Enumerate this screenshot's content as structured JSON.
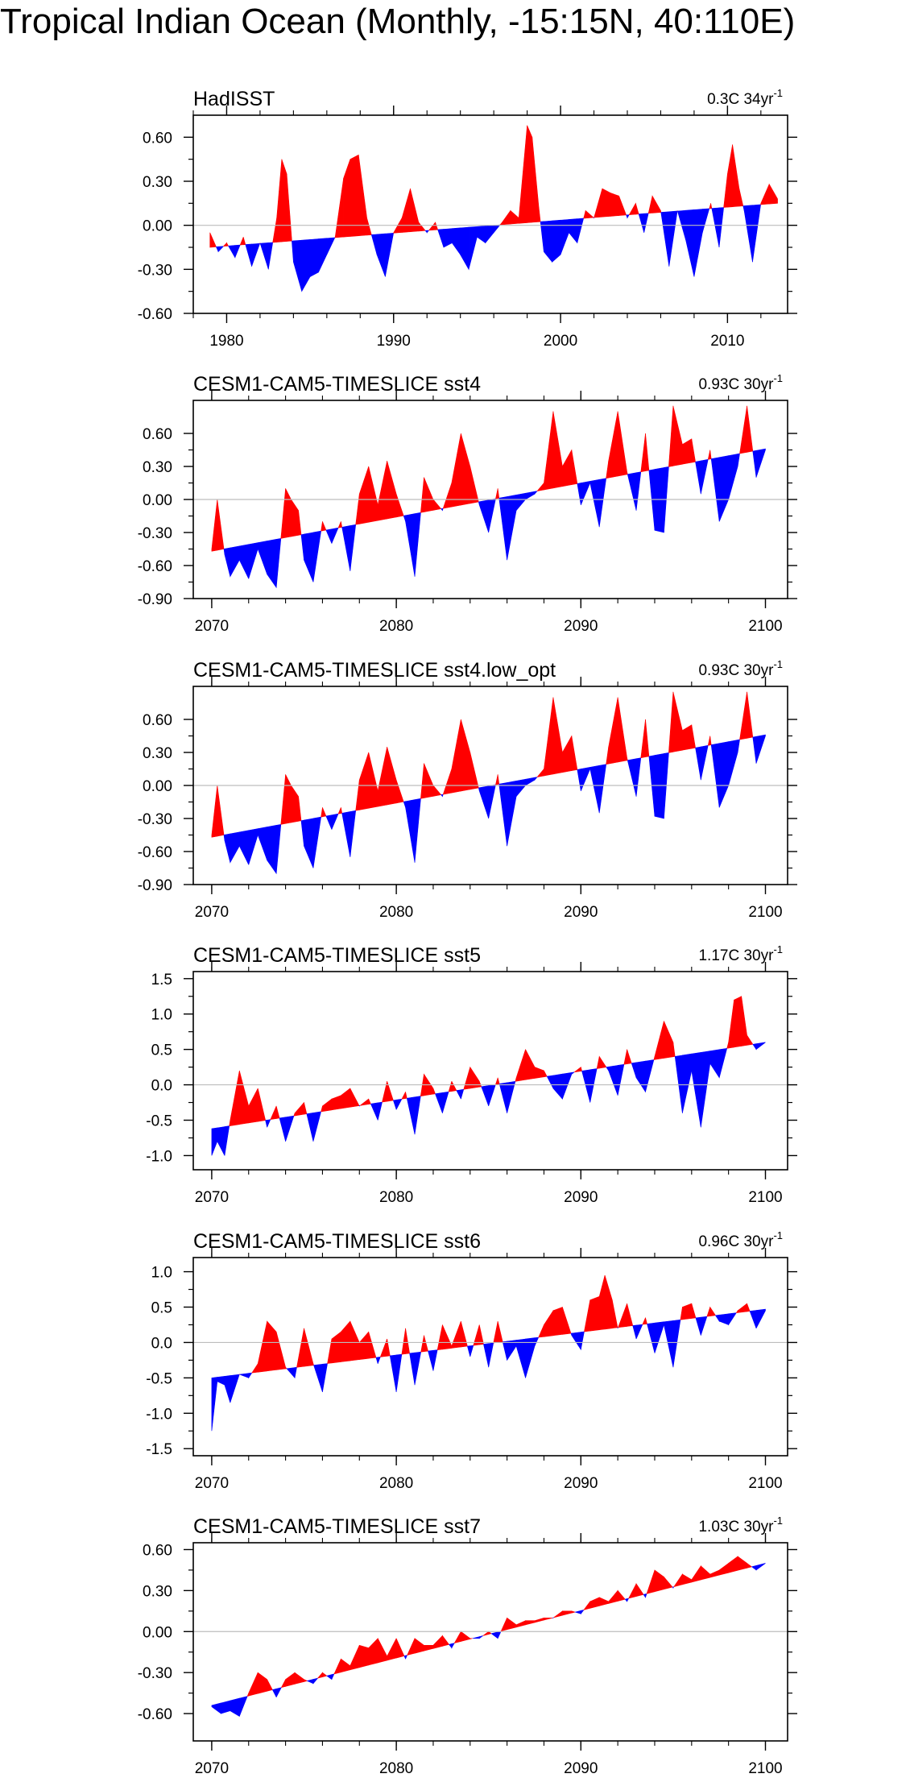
{
  "title": "Tropical Indian Ocean (Monthly, -15:15N, 40:110E)",
  "colors": {
    "positive": "#ff0000",
    "negative": "#0000ff",
    "axis": "#000000",
    "zero_line": "#bdbdbd"
  },
  "chart_data": [
    {
      "type": "area",
      "title": "HadISST",
      "trend_label": "0.3C 34yr",
      "trend_unit_sup": "-1",
      "xlim": [
        1978,
        2013.6
      ],
      "ylim": [
        -0.6,
        0.75
      ],
      "yticks": [
        -0.6,
        -0.3,
        0.0,
        0.3,
        0.6
      ],
      "ytick_labels": [
        "-0.60",
        "-0.30",
        "0.00",
        "0.30",
        "0.60"
      ],
      "xticks": [
        1980,
        1990,
        2000,
        2010
      ],
      "xtick_labels": [
        "1980",
        "1990",
        "2000",
        "2010"
      ],
      "trend": {
        "x": [
          1979,
          2013
        ],
        "y": [
          -0.15,
          0.15
        ]
      },
      "series": {
        "x": [
          1979.0,
          1979.5,
          1980.0,
          1980.5,
          1981.0,
          1981.5,
          1982.0,
          1982.5,
          1983.0,
          1983.3,
          1983.6,
          1984.0,
          1984.5,
          1985.0,
          1985.5,
          1986.0,
          1986.5,
          1987.0,
          1987.4,
          1987.9,
          1988.4,
          1989.0,
          1989.5,
          1990.0,
          1990.5,
          1991.0,
          1991.5,
          1992.0,
          1992.5,
          1993.0,
          1993.5,
          1994.0,
          1994.5,
          1995.0,
          1995.5,
          1996.0,
          1996.5,
          1997.0,
          1997.5,
          1998.0,
          1998.3,
          1998.7,
          1999.0,
          1999.5,
          2000.0,
          2000.5,
          2001.0,
          2001.5,
          2002.0,
          2002.5,
          2003.0,
          2003.5,
          2004.0,
          2004.5,
          2005.0,
          2005.5,
          2006.0,
          2006.5,
          2007.0,
          2007.5,
          2008.0,
          2008.5,
          2009.0,
          2009.5,
          2010.0,
          2010.3,
          2010.7,
          2011.0,
          2011.5,
          2012.0,
          2012.5,
          2013.0
        ],
        "y": [
          -0.05,
          -0.18,
          -0.12,
          -0.22,
          -0.08,
          -0.28,
          -0.12,
          -0.3,
          0.05,
          0.45,
          0.35,
          -0.25,
          -0.45,
          -0.35,
          -0.32,
          -0.2,
          -0.08,
          0.32,
          0.45,
          0.48,
          0.05,
          -0.2,
          -0.35,
          -0.05,
          0.05,
          0.25,
          0.02,
          -0.05,
          0.02,
          -0.15,
          -0.12,
          -0.2,
          -0.3,
          -0.08,
          -0.12,
          -0.05,
          0.02,
          0.1,
          0.05,
          0.68,
          0.6,
          0.12,
          -0.18,
          -0.25,
          -0.2,
          -0.05,
          -0.12,
          0.1,
          0.05,
          0.25,
          0.22,
          0.2,
          0.05,
          0.15,
          -0.05,
          0.2,
          0.1,
          -0.28,
          0.1,
          -0.1,
          -0.35,
          -0.05,
          0.15,
          -0.15,
          0.35,
          0.55,
          0.25,
          0.1,
          -0.25,
          0.15,
          0.28,
          0.18
        ]
      }
    },
    {
      "type": "area",
      "title": "CESM1-CAM5-TIMESLICE sst4",
      "trend_label": "0.93C 30yr",
      "trend_unit_sup": "-1",
      "xlim": [
        2069,
        2101.2
      ],
      "ylim": [
        -0.9,
        0.9
      ],
      "yticks": [
        -0.9,
        -0.6,
        -0.3,
        0.0,
        0.3,
        0.6
      ],
      "ytick_labels": [
        "-0.90",
        "-0.60",
        "-0.30",
        "0.00",
        "0.30",
        "0.60"
      ],
      "xticks": [
        2070,
        2080,
        2090,
        2100
      ],
      "xtick_labels": [
        "2070",
        "2080",
        "2090",
        "2100"
      ],
      "trend": {
        "x": [
          2070,
          2100
        ],
        "y": [
          -0.47,
          0.46
        ]
      },
      "series": {
        "x": [
          2070.0,
          2070.3,
          2070.7,
          2071.0,
          2071.5,
          2072.0,
          2072.5,
          2073.0,
          2073.5,
          2074.0,
          2074.3,
          2074.7,
          2075.0,
          2075.5,
          2076.0,
          2076.5,
          2077.0,
          2077.5,
          2078.0,
          2078.5,
          2079.0,
          2079.5,
          2080.0,
          2080.5,
          2081.0,
          2081.5,
          2082.0,
          2082.5,
          2083.0,
          2083.5,
          2084.0,
          2084.5,
          2085.0,
          2085.5,
          2086.0,
          2086.5,
          2087.0,
          2087.5,
          2088.0,
          2088.5,
          2089.0,
          2089.5,
          2090.0,
          2090.5,
          2091.0,
          2091.5,
          2092.0,
          2092.5,
          2093.0,
          2093.5,
          2094.0,
          2094.5,
          2095.0,
          2095.5,
          2096.0,
          2096.5,
          2097.0,
          2097.5,
          2098.0,
          2098.5,
          2099.0,
          2099.5,
          2100.0
        ],
        "y": [
          -0.45,
          0.0,
          -0.5,
          -0.7,
          -0.55,
          -0.72,
          -0.45,
          -0.68,
          -0.8,
          0.1,
          0.0,
          -0.1,
          -0.55,
          -0.75,
          -0.2,
          -0.4,
          -0.2,
          -0.65,
          0.05,
          0.3,
          -0.05,
          0.35,
          0.05,
          -0.2,
          -0.7,
          0.2,
          0.0,
          -0.1,
          0.15,
          0.6,
          0.3,
          -0.05,
          -0.3,
          0.1,
          -0.55,
          -0.1,
          0.0,
          0.05,
          0.15,
          0.8,
          0.3,
          0.45,
          -0.05,
          0.15,
          -0.25,
          0.35,
          0.8,
          0.25,
          -0.1,
          0.6,
          -0.28,
          -0.3,
          0.85,
          0.5,
          0.55,
          0.05,
          0.45,
          -0.2,
          0.0,
          0.3,
          0.85,
          0.2,
          0.45
        ]
      }
    },
    {
      "type": "area",
      "title": "CESM1-CAM5-TIMESLICE sst4.low_opt",
      "trend_label": "0.93C 30yr",
      "trend_unit_sup": "-1",
      "xlim": [
        2069,
        2101.2
      ],
      "ylim": [
        -0.9,
        0.9
      ],
      "yticks": [
        -0.9,
        -0.6,
        -0.3,
        0.0,
        0.3,
        0.6
      ],
      "ytick_labels": [
        "-0.90",
        "-0.60",
        "-0.30",
        "0.00",
        "0.30",
        "0.60"
      ],
      "xticks": [
        2070,
        2080,
        2090,
        2100
      ],
      "xtick_labels": [
        "2070",
        "2080",
        "2090",
        "2100"
      ],
      "trend": {
        "x": [
          2070,
          2100
        ],
        "y": [
          -0.47,
          0.46
        ]
      },
      "series": {
        "x": [
          2070.0,
          2070.3,
          2070.7,
          2071.0,
          2071.5,
          2072.0,
          2072.5,
          2073.0,
          2073.5,
          2074.0,
          2074.3,
          2074.7,
          2075.0,
          2075.5,
          2076.0,
          2076.5,
          2077.0,
          2077.5,
          2078.0,
          2078.5,
          2079.0,
          2079.5,
          2080.0,
          2080.5,
          2081.0,
          2081.5,
          2082.0,
          2082.5,
          2083.0,
          2083.5,
          2084.0,
          2084.5,
          2085.0,
          2085.5,
          2086.0,
          2086.5,
          2087.0,
          2087.5,
          2088.0,
          2088.5,
          2089.0,
          2089.5,
          2090.0,
          2090.5,
          2091.0,
          2091.5,
          2092.0,
          2092.5,
          2093.0,
          2093.5,
          2094.0,
          2094.5,
          2095.0,
          2095.5,
          2096.0,
          2096.5,
          2097.0,
          2097.5,
          2098.0,
          2098.5,
          2099.0,
          2099.5,
          2100.0
        ],
        "y": [
          -0.45,
          0.0,
          -0.5,
          -0.7,
          -0.55,
          -0.72,
          -0.45,
          -0.68,
          -0.8,
          0.1,
          0.0,
          -0.1,
          -0.55,
          -0.75,
          -0.2,
          -0.4,
          -0.2,
          -0.65,
          0.05,
          0.3,
          -0.05,
          0.35,
          0.05,
          -0.2,
          -0.7,
          0.2,
          0.0,
          -0.1,
          0.15,
          0.6,
          0.3,
          -0.05,
          -0.3,
          0.1,
          -0.55,
          -0.1,
          0.0,
          0.05,
          0.15,
          0.8,
          0.3,
          0.45,
          -0.05,
          0.15,
          -0.25,
          0.35,
          0.8,
          0.25,
          -0.1,
          0.6,
          -0.28,
          -0.3,
          0.85,
          0.5,
          0.55,
          0.05,
          0.45,
          -0.2,
          0.0,
          0.3,
          0.85,
          0.2,
          0.45
        ]
      }
    },
    {
      "type": "area",
      "title": "CESM1-CAM5-TIMESLICE sst5",
      "trend_label": "1.17C 30yr",
      "trend_unit_sup": "-1",
      "xlim": [
        2069,
        2101.2
      ],
      "ylim": [
        -1.2,
        1.6
      ],
      "yticks": [
        -1.0,
        -0.5,
        0.0,
        0.5,
        1.0,
        1.5
      ],
      "ytick_labels": [
        "-1.0",
        "-0.5",
        "0.0",
        "0.5",
        "1.0",
        "1.5"
      ],
      "xticks": [
        2070,
        2080,
        2090,
        2100
      ],
      "xtick_labels": [
        "2070",
        "2080",
        "2090",
        "2100"
      ],
      "trend": {
        "x": [
          2070,
          2100
        ],
        "y": [
          -0.62,
          0.6
        ]
      },
      "series": {
        "x": [
          2070.0,
          2070.3,
          2070.7,
          2071.0,
          2071.5,
          2072.0,
          2072.5,
          2073.0,
          2073.5,
          2074.0,
          2074.5,
          2075.0,
          2075.5,
          2076.0,
          2076.5,
          2077.0,
          2077.5,
          2078.0,
          2078.5,
          2079.0,
          2079.5,
          2080.0,
          2080.5,
          2081.0,
          2081.5,
          2082.0,
          2082.5,
          2083.0,
          2083.5,
          2084.0,
          2084.5,
          2085.0,
          2085.5,
          2086.0,
          2086.5,
          2087.0,
          2087.5,
          2088.0,
          2088.5,
          2089.0,
          2089.5,
          2090.0,
          2090.5,
          2091.0,
          2091.5,
          2092.0,
          2092.5,
          2093.0,
          2093.5,
          2094.0,
          2094.5,
          2095.0,
          2095.5,
          2096.0,
          2096.5,
          2097.0,
          2097.5,
          2098.0,
          2098.3,
          2098.7,
          2099.0,
          2099.5,
          2100.0
        ],
        "y": [
          -1.0,
          -0.8,
          -1.0,
          -0.5,
          0.2,
          -0.3,
          -0.05,
          -0.6,
          -0.3,
          -0.8,
          -0.4,
          -0.25,
          -0.8,
          -0.3,
          -0.2,
          -0.15,
          -0.05,
          -0.3,
          -0.2,
          -0.5,
          0.05,
          -0.35,
          -0.1,
          -0.7,
          0.15,
          -0.05,
          -0.4,
          0.05,
          -0.2,
          0.25,
          0.05,
          -0.3,
          0.1,
          -0.4,
          0.1,
          0.5,
          0.25,
          0.2,
          -0.05,
          -0.2,
          0.15,
          0.25,
          -0.25,
          0.4,
          0.2,
          -0.15,
          0.5,
          0.1,
          -0.1,
          0.4,
          0.9,
          0.6,
          -0.4,
          0.2,
          -0.6,
          0.3,
          0.1,
          0.6,
          1.2,
          1.25,
          0.7,
          0.5,
          0.6
        ]
      }
    },
    {
      "type": "area",
      "title": "CESM1-CAM5-TIMESLICE sst6",
      "trend_label": "0.96C 30yr",
      "trend_unit_sup": "-1",
      "xlim": [
        2069,
        2101.2
      ],
      "ylim": [
        -1.6,
        1.2
      ],
      "yticks": [
        -1.5,
        -1.0,
        -0.5,
        0.0,
        0.5,
        1.0
      ],
      "ytick_labels": [
        "-1.5",
        "-1.0",
        "-0.5",
        "0.0",
        "0.5",
        "1.0"
      ],
      "xticks": [
        2070,
        2080,
        2090,
        2100
      ],
      "xtick_labels": [
        "2070",
        "2080",
        "2090",
        "2100"
      ],
      "trend": {
        "x": [
          2070,
          2100
        ],
        "y": [
          -0.5,
          0.47
        ]
      },
      "series": {
        "x": [
          2070.0,
          2070.3,
          2070.7,
          2071.0,
          2071.5,
          2072.0,
          2072.5,
          2073.0,
          2073.5,
          2074.0,
          2074.5,
          2075.0,
          2075.5,
          2076.0,
          2076.5,
          2077.0,
          2077.5,
          2078.0,
          2078.5,
          2079.0,
          2079.5,
          2080.0,
          2080.5,
          2081.0,
          2081.5,
          2082.0,
          2082.5,
          2083.0,
          2083.5,
          2084.0,
          2084.5,
          2085.0,
          2085.5,
          2086.0,
          2086.5,
          2087.0,
          2087.5,
          2088.0,
          2088.5,
          2089.0,
          2089.5,
          2090.0,
          2090.5,
          2091.0,
          2091.3,
          2091.7,
          2092.0,
          2092.5,
          2093.0,
          2093.5,
          2094.0,
          2094.5,
          2095.0,
          2095.5,
          2096.0,
          2096.5,
          2097.0,
          2097.5,
          2098.0,
          2098.5,
          2099.0,
          2099.5,
          2100.0
        ],
        "y": [
          -1.25,
          -0.55,
          -0.6,
          -0.85,
          -0.45,
          -0.5,
          -0.3,
          0.3,
          0.15,
          -0.35,
          -0.5,
          0.2,
          -0.3,
          -0.7,
          0.05,
          0.15,
          0.3,
          0.0,
          0.15,
          -0.3,
          0.05,
          -0.7,
          0.2,
          -0.6,
          0.1,
          -0.4,
          0.25,
          -0.05,
          0.3,
          -0.2,
          0.25,
          -0.35,
          0.3,
          -0.25,
          -0.05,
          -0.5,
          -0.05,
          0.25,
          0.45,
          0.5,
          0.1,
          -0.1,
          0.6,
          0.65,
          0.95,
          0.6,
          0.2,
          0.55,
          0.05,
          0.35,
          -0.15,
          0.25,
          -0.35,
          0.5,
          0.55,
          0.1,
          0.5,
          0.3,
          0.25,
          0.45,
          0.55,
          0.2,
          0.45
        ]
      }
    },
    {
      "type": "area",
      "title": "CESM1-CAM5-TIMESLICE sst7",
      "trend_label": "1.03C 30yr",
      "trend_unit_sup": "-1",
      "xlim": [
        2069,
        2101.2
      ],
      "ylim": [
        -0.8,
        0.65
      ],
      "yticks": [
        -0.6,
        -0.3,
        0.0,
        0.3,
        0.6
      ],
      "ytick_labels": [
        "-0.60",
        "-0.30",
        "0.00",
        "0.30",
        "0.60"
      ],
      "xticks": [
        2070,
        2080,
        2090,
        2100
      ],
      "xtick_labels": [
        "2070",
        "2080",
        "2090",
        "2100"
      ],
      "trend": {
        "x": [
          2070,
          2100
        ],
        "y": [
          -0.54,
          0.5
        ]
      },
      "series": {
        "x": [
          2070.0,
          2070.5,
          2071.0,
          2071.5,
          2072.0,
          2072.5,
          2073.0,
          2073.5,
          2074.0,
          2074.5,
          2075.0,
          2075.5,
          2076.0,
          2076.5,
          2077.0,
          2077.5,
          2078.0,
          2078.5,
          2079.0,
          2079.5,
          2080.0,
          2080.5,
          2081.0,
          2081.5,
          2082.0,
          2082.5,
          2083.0,
          2083.5,
          2084.0,
          2084.5,
          2085.0,
          2085.5,
          2086.0,
          2086.5,
          2087.0,
          2087.5,
          2088.0,
          2088.5,
          2089.0,
          2089.5,
          2090.0,
          2090.5,
          2091.0,
          2091.5,
          2092.0,
          2092.5,
          2093.0,
          2093.5,
          2094.0,
          2094.5,
          2095.0,
          2095.5,
          2096.0,
          2096.5,
          2097.0,
          2097.5,
          2098.0,
          2098.5,
          2099.0,
          2099.5,
          2100.0
        ],
        "y": [
          -0.55,
          -0.6,
          -0.58,
          -0.62,
          -0.45,
          -0.3,
          -0.35,
          -0.48,
          -0.35,
          -0.3,
          -0.35,
          -0.38,
          -0.3,
          -0.35,
          -0.2,
          -0.25,
          -0.1,
          -0.12,
          -0.05,
          -0.18,
          -0.05,
          -0.2,
          -0.05,
          -0.1,
          -0.1,
          -0.03,
          -0.12,
          0.0,
          -0.05,
          -0.05,
          0.0,
          -0.05,
          0.1,
          0.05,
          0.08,
          0.08,
          0.1,
          0.1,
          0.15,
          0.15,
          0.13,
          0.22,
          0.25,
          0.22,
          0.3,
          0.22,
          0.35,
          0.25,
          0.45,
          0.4,
          0.32,
          0.42,
          0.38,
          0.48,
          0.42,
          0.45,
          0.5,
          0.55,
          0.5,
          0.45,
          0.5
        ]
      }
    }
  ]
}
